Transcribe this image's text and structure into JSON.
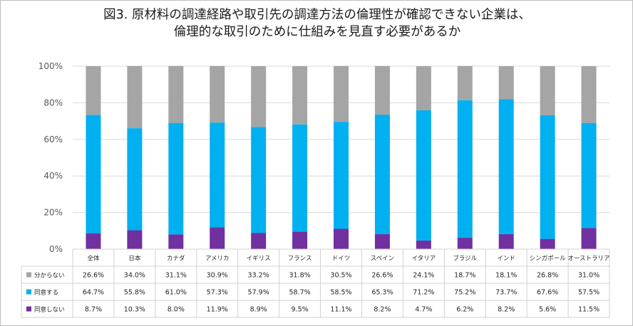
{
  "chart_data": {
    "type": "bar",
    "stacked": true,
    "title_line1": "図3. 原材料の調達経路や取引先の調達方法の倫理性が確認できない企業は、",
    "title_line2": "倫理的な取引のために仕組みを見直す必要があるか",
    "ylim": [
      0,
      100
    ],
    "y_ticks": [
      "0%",
      "20%",
      "40%",
      "60%",
      "80%",
      "100%"
    ],
    "grid": true,
    "legend_placement": "data-table-left",
    "categories": [
      "全体",
      "日本",
      "カナダ",
      "アメリカ",
      "イギリス",
      "フランス",
      "ドイツ",
      "スペイン",
      "イタリア",
      "ブラジル",
      "インド",
      "シンガポール",
      "オーストラリア"
    ],
    "series": [
      {
        "name": "分からない",
        "color": "#a5a5a5",
        "values": [
          26.6,
          34.0,
          31.1,
          30.9,
          33.2,
          31.8,
          30.5,
          26.6,
          24.1,
          18.7,
          18.1,
          26.8,
          31.0
        ],
        "labels": [
          "26.6%",
          "34.0%",
          "31.1%",
          "30.9%",
          "33.2%",
          "31.8%",
          "30.5%",
          "26.6%",
          "24.1%",
          "18.7%",
          "18.1%",
          "26.8%",
          "31.0%"
        ]
      },
      {
        "name": "同意する",
        "color": "#00b0f0",
        "values": [
          64.7,
          55.8,
          61.0,
          57.3,
          57.9,
          58.7,
          58.5,
          65.3,
          71.2,
          75.2,
          73.7,
          67.6,
          57.5
        ],
        "labels": [
          "64.7%",
          "55.8%",
          "61.0%",
          "57.3%",
          "57.9%",
          "58.7%",
          "58.5%",
          "65.3%",
          "71.2%",
          "75.2%",
          "73.7%",
          "67.6%",
          "57.5%"
        ]
      },
      {
        "name": "同意しない",
        "color": "#7030a0",
        "values": [
          8.7,
          10.3,
          8.0,
          11.9,
          8.9,
          9.5,
          11.1,
          8.2,
          4.7,
          6.2,
          8.2,
          5.6,
          11.5
        ],
        "labels": [
          "8.7%",
          "10.3%",
          "8.0%",
          "11.9%",
          "8.9%",
          "9.5%",
          "11.1%",
          "8.2%",
          "4.7%",
          "6.2%",
          "8.2%",
          "5.6%",
          "11.5%"
        ]
      }
    ]
  }
}
